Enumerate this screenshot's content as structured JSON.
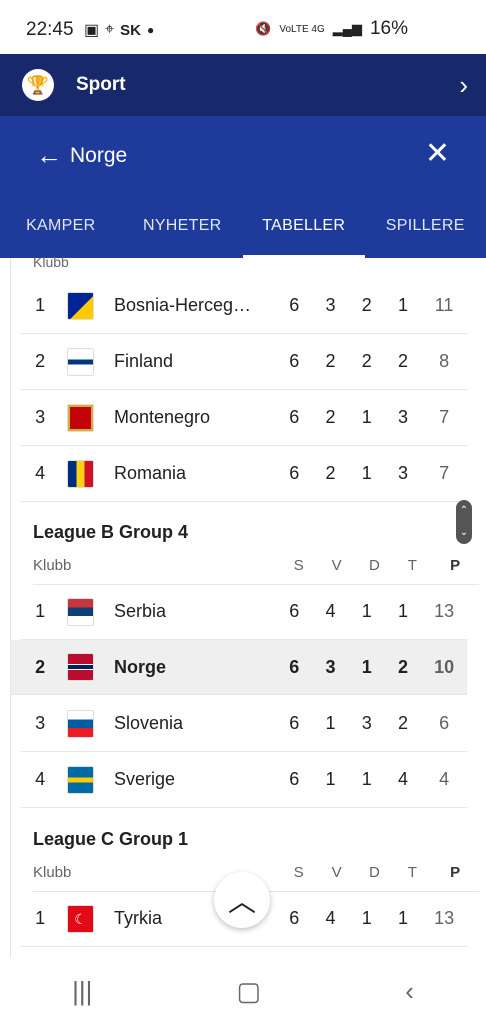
{
  "status": {
    "time": "22:45",
    "carrier": "SK",
    "signal": "VoLTE 4G",
    "battery": "16%"
  },
  "sport_bar": {
    "title": "Sport"
  },
  "header": {
    "title": "Norge"
  },
  "tabs": [
    "KAMPER",
    "NYHETER",
    "TABELLER",
    "SPILLERE"
  ],
  "active_tab": "TABELLER",
  "columns": {
    "club": "Klubb",
    "s": "S",
    "v": "V",
    "d": "D",
    "t": "T",
    "p": "P"
  },
  "partial_header": "Klubb",
  "groups": [
    {
      "title": "",
      "rows": [
        {
          "rank": "1",
          "team": "Bosnia-Herceg…",
          "s": "6",
          "v": "3",
          "d": "2",
          "t": "1",
          "p": "11",
          "flag": "bosnia-flag"
        },
        {
          "rank": "2",
          "team": "Finland",
          "s": "6",
          "v": "2",
          "d": "2",
          "t": "2",
          "p": "8",
          "flag": "finland-flag"
        },
        {
          "rank": "3",
          "team": "Montenegro",
          "s": "6",
          "v": "2",
          "d": "1",
          "t": "3",
          "p": "7",
          "flag": "montenegro-flag"
        },
        {
          "rank": "4",
          "team": "Romania",
          "s": "6",
          "v": "2",
          "d": "1",
          "t": "3",
          "p": "7",
          "flag": "romania-flag"
        }
      ]
    },
    {
      "title": "League B Group 4",
      "rows": [
        {
          "rank": "1",
          "team": "Serbia",
          "s": "6",
          "v": "4",
          "d": "1",
          "t": "1",
          "p": "13",
          "flag": "serbia-flag"
        },
        {
          "rank": "2",
          "team": "Norge",
          "s": "6",
          "v": "3",
          "d": "1",
          "t": "2",
          "p": "10",
          "flag": "norway-flag",
          "highlight": true
        },
        {
          "rank": "3",
          "team": "Slovenia",
          "s": "6",
          "v": "1",
          "d": "3",
          "t": "2",
          "p": "6",
          "flag": "slovenia-flag"
        },
        {
          "rank": "4",
          "team": "Sverige",
          "s": "6",
          "v": "1",
          "d": "1",
          "t": "4",
          "p": "4",
          "flag": "sweden-flag"
        }
      ]
    },
    {
      "title": "League C Group 1",
      "rows": [
        {
          "rank": "1",
          "team": "Tyrkia",
          "s": "6",
          "v": "4",
          "d": "1",
          "t": "1",
          "p": "13",
          "flag": "turkey-flag"
        }
      ]
    }
  ],
  "colors": {
    "top_bar": "#17286b",
    "header": "#1e3a9a",
    "highlight_row": "#efefef"
  }
}
